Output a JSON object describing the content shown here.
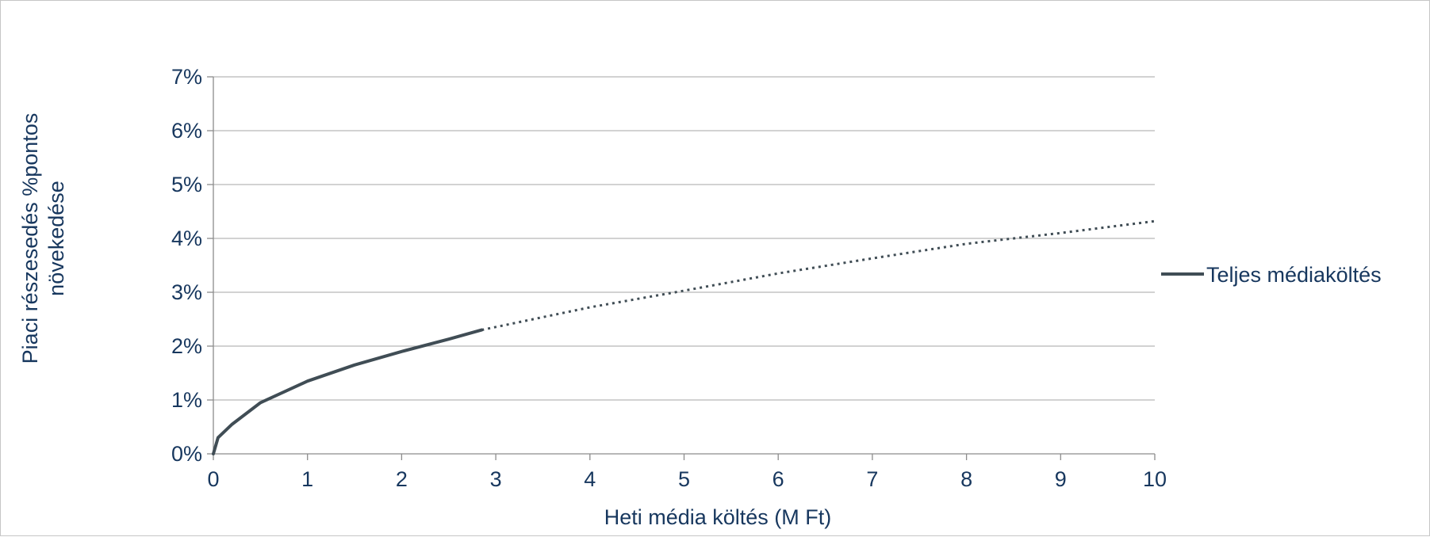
{
  "chart_data": {
    "type": "line",
    "title": "",
    "xlabel": "Heti média költés (M Ft)",
    "ylabel_lines": [
      "Piaci részesedés %pontos",
      "növekedése"
    ],
    "xlim": [
      0,
      10
    ],
    "ylim": [
      0,
      0.07
    ],
    "x_ticks": [
      0,
      1,
      2,
      3,
      4,
      5,
      6,
      7,
      8,
      9,
      10
    ],
    "x_tick_labels": [
      "0",
      "1",
      "2",
      "3",
      "4",
      "5",
      "6",
      "7",
      "8",
      "9",
      "10"
    ],
    "y_ticks": [
      0,
      0.01,
      0.02,
      0.03,
      0.04,
      0.05,
      0.06,
      0.07
    ],
    "y_tick_labels": [
      "0%",
      "1%",
      "2%",
      "3%",
      "4%",
      "5%",
      "6%",
      "7%"
    ],
    "grid": "horizontal",
    "legend_position": "right",
    "series": [
      {
        "name": "Teljes médiaköltés",
        "color": "#404d55",
        "solid_points": [
          [
            0.0,
            0.0
          ],
          [
            0.05,
            0.003
          ],
          [
            0.2,
            0.0055
          ],
          [
            0.5,
            0.0095
          ],
          [
            1.0,
            0.0135
          ],
          [
            1.5,
            0.0165
          ],
          [
            2.0,
            0.019
          ],
          [
            2.5,
            0.0213
          ],
          [
            2.85,
            0.023
          ]
        ],
        "dotted_points": [
          [
            2.85,
            0.023
          ],
          [
            4.0,
            0.0272
          ],
          [
            5.0,
            0.0303
          ],
          [
            6.0,
            0.0335
          ],
          [
            7.0,
            0.0363
          ],
          [
            8.0,
            0.039
          ],
          [
            9.0,
            0.041
          ],
          [
            10.0,
            0.0432
          ]
        ]
      }
    ]
  }
}
